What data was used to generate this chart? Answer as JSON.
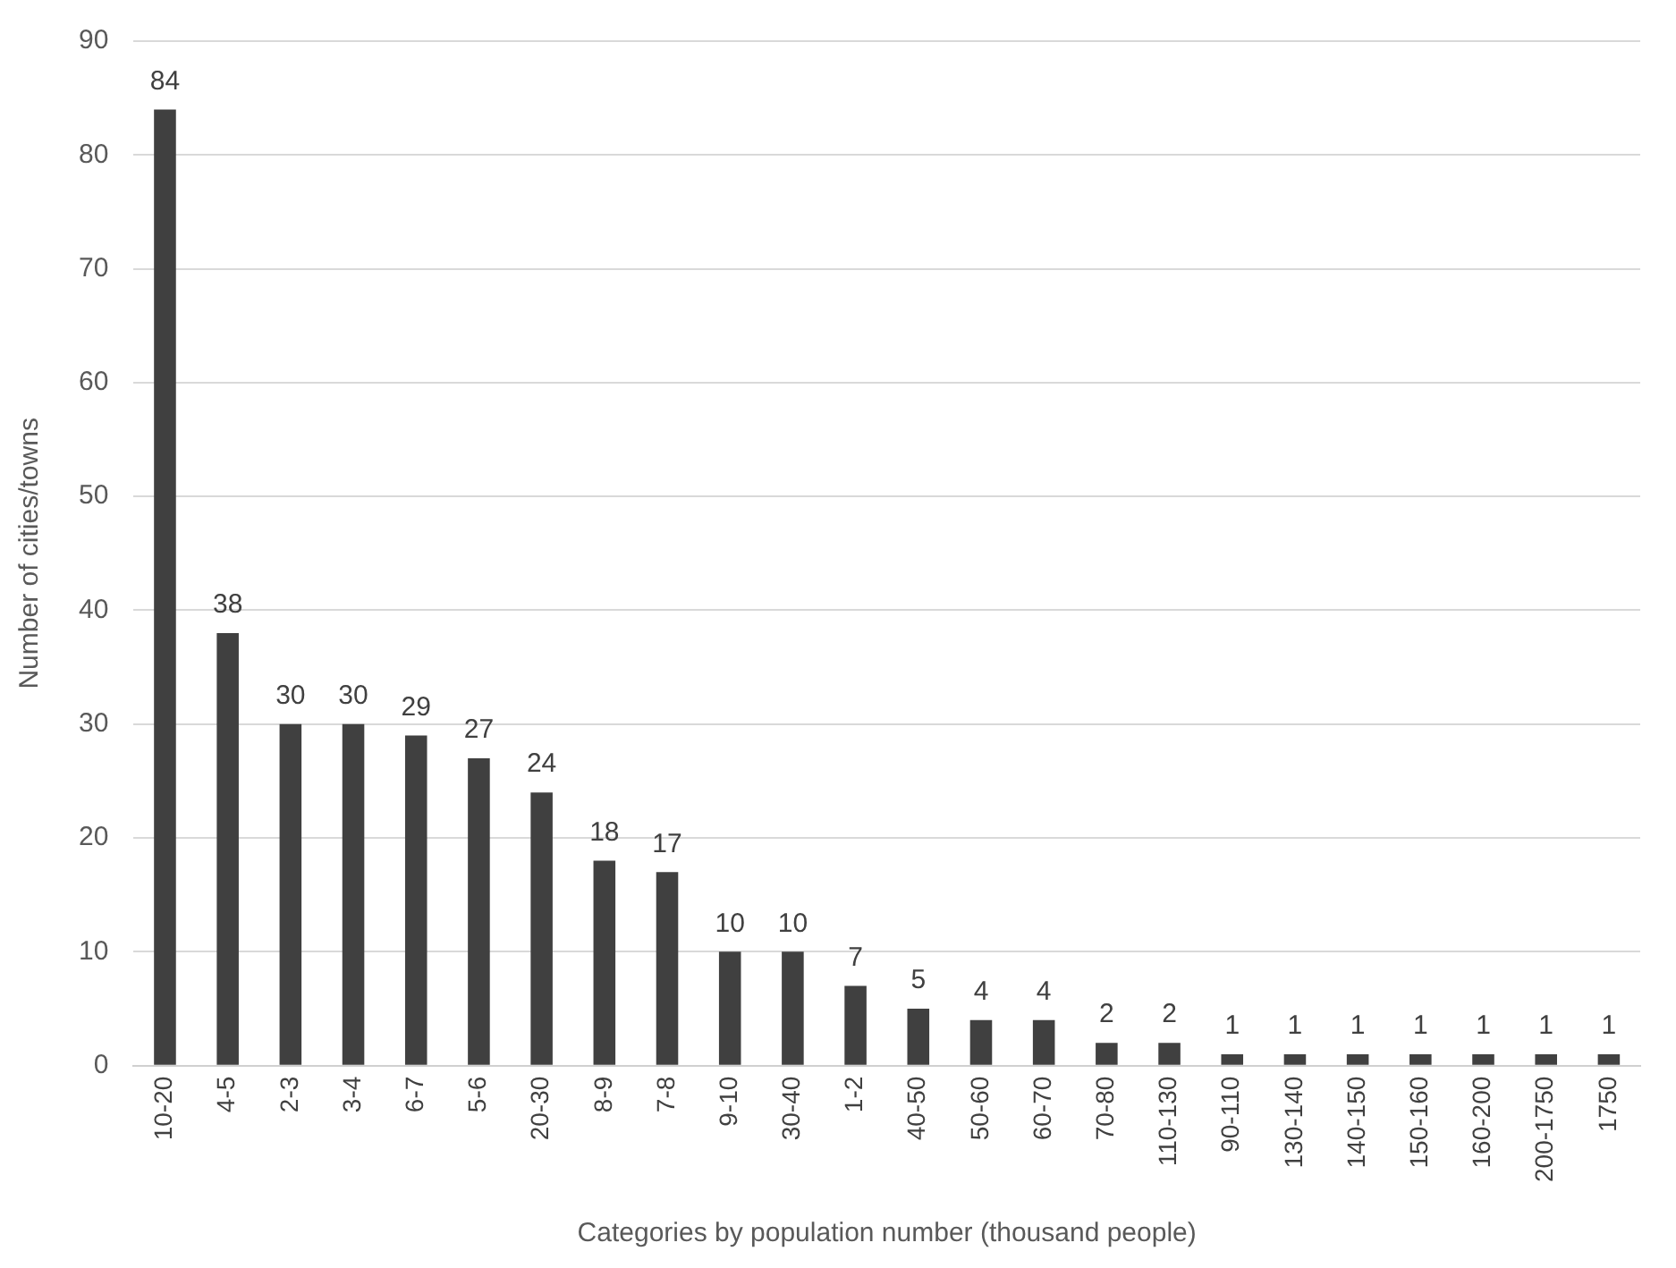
{
  "chart_data": {
    "type": "bar",
    "xlabel": "Categories by population number (thousand people)",
    "ylabel": "Number of cities/towns",
    "categories": [
      "10-20",
      "4-5",
      "2-3",
      "3-4",
      "6-7",
      "5-6",
      "20-30",
      "8-9",
      "7-8",
      "9-10",
      "30-40",
      "1-2",
      "40-50",
      "50-60",
      "60-70",
      "70-80",
      "110-130",
      "90-110",
      "130-140",
      "140-150",
      "150-160",
      "160-200",
      "200-1750",
      "1750"
    ],
    "values": [
      84,
      38,
      30,
      30,
      29,
      27,
      24,
      18,
      17,
      10,
      10,
      7,
      5,
      4,
      4,
      2,
      2,
      1,
      1,
      1,
      1,
      1,
      1,
      1
    ],
    "color": "#404040",
    "ylim": [
      0,
      90
    ],
    "yticks": [
      0,
      10,
      20,
      30,
      40,
      50,
      60,
      70,
      80,
      90
    ],
    "grid": "y",
    "legend": false,
    "data_labels": true
  }
}
